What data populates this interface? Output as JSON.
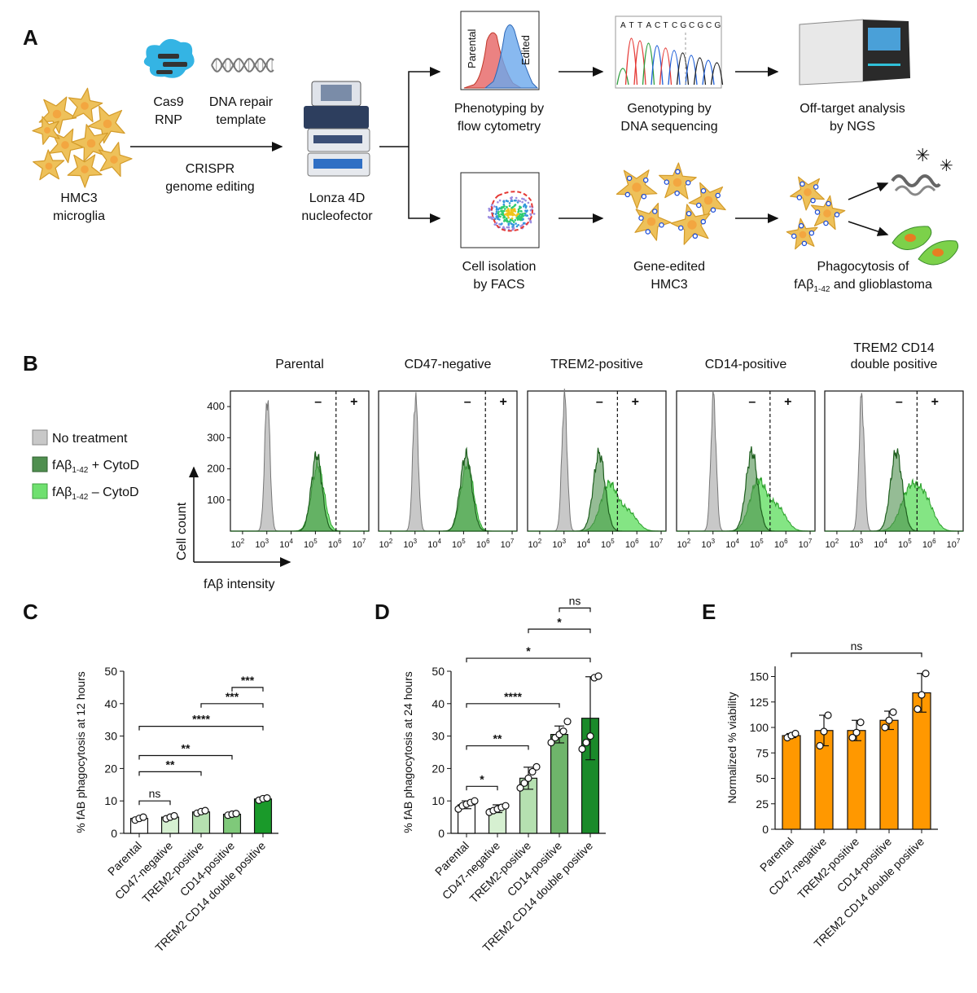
{
  "colors": {
    "grey": "#c8c8c8",
    "dark_green": "#4f8f4f",
    "light_green": "#6fe06f",
    "orange": "#ff9800",
    "cell": "#eec15a",
    "cyto_red": "#e74c4c",
    "cyto_blue": "#4e8fe8"
  },
  "panel_a": {
    "label": "A",
    "hmc3": [
      "HMC3",
      "microglia"
    ],
    "cas9": [
      "Cas9",
      "RNP"
    ],
    "dna_repair": [
      "DNA repair",
      "template"
    ],
    "crispr": [
      "CRISPR",
      "genome editing"
    ],
    "lonza": [
      "Lonza 4D",
      "nucleofector"
    ],
    "flow": [
      "Phenotyping by",
      "flow cytometry"
    ],
    "flow_parental": "Parental",
    "flow_edited": "Edited",
    "geno": [
      "Genotyping by",
      "DNA sequencing"
    ],
    "seq": "ATTACTCGCGCG",
    "offtarget": [
      "Off-target analysis",
      "by NGS"
    ],
    "facs": [
      "Cell isolation",
      "by FACS"
    ],
    "edited": [
      "Gene-edited",
      "HMC3"
    ],
    "phago_line1": "Phagocytosis of",
    "phago_pre": "fAβ",
    "phago_sub": "1-42",
    "phago_post": " and glioblastoma"
  },
  "panel_b": {
    "label": "B",
    "titles": [
      [
        "Parental"
      ],
      [
        "CD47-negative"
      ],
      [
        "TREM2-positive"
      ],
      [
        "CD14-positive"
      ],
      [
        "TREM2 CD14",
        "double positive"
      ]
    ],
    "yticks": [
      "100",
      "200",
      "300",
      "400"
    ],
    "xticks": [
      "10",
      "10",
      "10",
      "10",
      "10",
      "10"
    ],
    "xexp": [
      "2",
      "3",
      "4",
      "5",
      "6",
      "7"
    ],
    "minus": "–",
    "plus": "+",
    "ylabel": "Cell count",
    "xlabel": "fAβ intensity",
    "legend": {
      "none": "No treatment",
      "with_pre": "fAβ",
      "with_sub": "1-42",
      "with_post": " + CytoD",
      "without_pre": "fAβ",
      "without_sub": "1-42",
      "without_post": " – CytoD"
    }
  },
  "chart_data": [
    {
      "panel": "C",
      "type": "bar",
      "categories": [
        "Parental",
        "CD47-negative",
        "TREM2-positive",
        "CD14-positive",
        "TREM2 CD14 double positive"
      ],
      "values": [
        4.6,
        5.0,
        6.6,
        5.9,
        10.6
      ],
      "points": [
        [
          4.1,
          4.6,
          5.0
        ],
        [
          4.5,
          5.0,
          5.4
        ],
        [
          6.2,
          6.7,
          7.0
        ],
        [
          5.6,
          5.9,
          6.1
        ],
        [
          10.2,
          10.7,
          10.9
        ]
      ],
      "ylabel": "% fAB phagocytosis at 12 hours",
      "ylim": [
        0,
        50
      ],
      "yticks": [
        0,
        10,
        20,
        30,
        40,
        50
      ],
      "significance": [
        {
          "from": 0,
          "to": 1,
          "label": "ns"
        },
        {
          "from": 0,
          "to": 2,
          "label": "**"
        },
        {
          "from": 0,
          "to": 3,
          "label": "**"
        },
        {
          "from": 0,
          "to": 4,
          "label": "****"
        },
        {
          "from": 2,
          "to": 4,
          "label": "***"
        },
        {
          "from": 3,
          "to": 4,
          "label": "***"
        }
      ]
    },
    {
      "panel": "D",
      "type": "bar",
      "categories": [
        "Parental",
        "CD47-negative",
        "TREM2-positive",
        "CD14-positive",
        "TREM2 CD14 double positive"
      ],
      "values": [
        8.8,
        7.6,
        17.0,
        30.5,
        35.5
      ],
      "errors": [
        1.2,
        1.2,
        3.4,
        2.6,
        12.8
      ],
      "points": [
        [
          7.5,
          8.5,
          9.0,
          9.5,
          10.0
        ],
        [
          6.5,
          7.0,
          7.5,
          8.0,
          8.5
        ],
        [
          14.0,
          15.5,
          17.0,
          19.0,
          20.5
        ],
        [
          28.0,
          29.5,
          30.5,
          31.5,
          34.5
        ],
        [
          26.0,
          28.0,
          30.0,
          48.0,
          48.5
        ]
      ],
      "ylabel": "% fAB phagocytosis at 24 hours",
      "ylim": [
        0,
        50
      ],
      "yticks": [
        0,
        10,
        20,
        30,
        40,
        50
      ],
      "significance": [
        {
          "from": 0,
          "to": 1,
          "label": "*"
        },
        {
          "from": 0,
          "to": 2,
          "label": "**"
        },
        {
          "from": 0,
          "to": 3,
          "label": "****"
        },
        {
          "from": 0,
          "to": 4,
          "label": "*"
        },
        {
          "from": 2,
          "to": 4,
          "label": "*"
        },
        {
          "from": 3,
          "to": 4,
          "label": "ns"
        }
      ]
    },
    {
      "panel": "E",
      "type": "bar",
      "categories": [
        "Parental",
        "CD47-negative",
        "TREM2-positive",
        "CD14-positive",
        "TREM2 CD14 double positive"
      ],
      "values": [
        92,
        97,
        97,
        107,
        134
      ],
      "errors": [
        2,
        15,
        10,
        9,
        19
      ],
      "points": [
        [
          90,
          92,
          94
        ],
        [
          82,
          96,
          112
        ],
        [
          90,
          95,
          105
        ],
        [
          100,
          107,
          115
        ],
        [
          118,
          132,
          153
        ]
      ],
      "ylabel": "Normalized % viability",
      "ylim": [
        0,
        160
      ],
      "yticks": [
        0,
        25,
        50,
        75,
        100,
        125,
        150
      ],
      "significance": [
        {
          "from": 0,
          "to": 4,
          "label": "ns"
        }
      ]
    }
  ]
}
